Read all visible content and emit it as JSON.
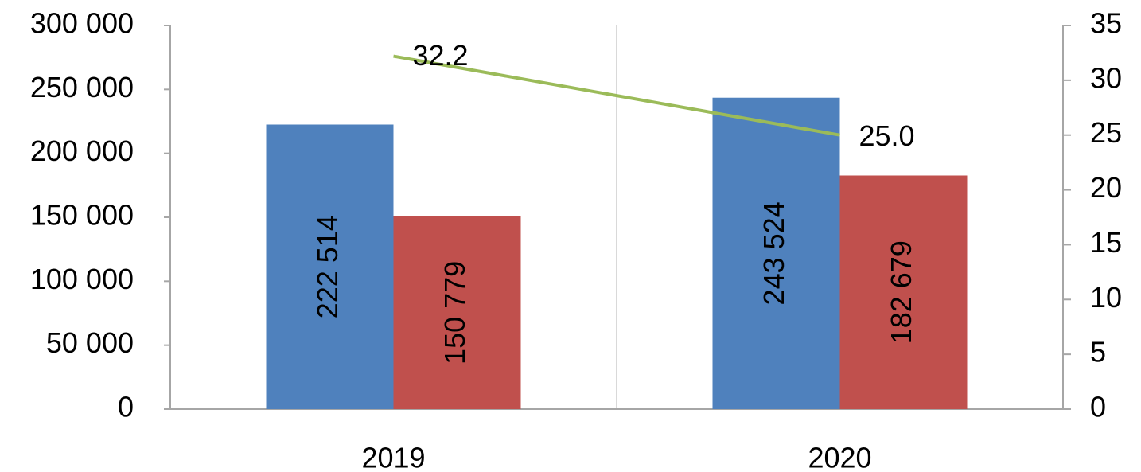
{
  "chart_data": {
    "type": "bar",
    "categories": [
      "2019",
      "2020"
    ],
    "series": [
      {
        "color": "#4f81bd",
        "values": [
          222514,
          243524
        ],
        "value_labels": [
          "222 514",
          "243 524"
        ]
      },
      {
        "color": "#c0504d",
        "values": [
          150779,
          182679
        ],
        "value_labels": [
          "150 779",
          "182 679"
        ]
      },
      {
        "type": "line",
        "axis": "y2",
        "color": "#9bbb59",
        "values": [
          32.2,
          25.0
        ],
        "value_labels": [
          "32.2",
          "25.0"
        ]
      }
    ],
    "ylim": [
      0,
      300000
    ],
    "yticks": [
      0,
      {
        "value": 50000,
        "label": "50 000"
      },
      {
        "value": 100000,
        "label": "100 000"
      },
      {
        "value": 150000,
        "label": "150 000"
      },
      {
        "value": 200000,
        "label": "200 000"
      },
      {
        "value": 250000,
        "label": "250 000"
      },
      {
        "value": 300000,
        "label": "300 000"
      }
    ],
    "y2lim": [
      0,
      35
    ],
    "y2ticks": [
      0,
      5,
      10,
      15,
      20,
      25,
      30,
      35
    ],
    "grid": false
  }
}
